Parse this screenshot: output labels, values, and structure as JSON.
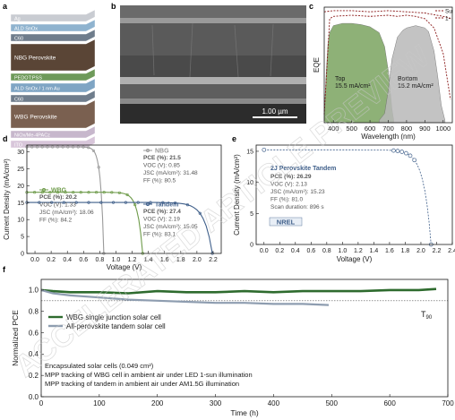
{
  "panel_labels": [
    "a",
    "b",
    "c",
    "d",
    "e",
    "f"
  ],
  "panel_a": {
    "layers": [
      {
        "label": "Ag",
        "color": "#c9ccd2"
      },
      {
        "label": "ALD SnOx",
        "color": "#8fb3cf"
      },
      {
        "label": "C60",
        "color": "#6f7d8c"
      },
      {
        "label": "NBG Perovskite",
        "color": "#5a4536"
      },
      {
        "label": "PEDOT:PSS",
        "color": "#6e9a5a"
      },
      {
        "label": "ALD SnOx / 1 nm Au",
        "color": "#7fa5c4"
      },
      {
        "label": "C60",
        "color": "#6f7d8c"
      },
      {
        "label": "WBG Perovskite",
        "color": "#7a6050"
      },
      {
        "label": "NiOx/Me-4PACz",
        "color": "#c7b7cc"
      },
      {
        "label": "ITO",
        "color": "#d8c6da"
      }
    ]
  },
  "panel_b": {
    "scale_bar": "1.00 µm"
  },
  "chart_data": [
    {
      "panel": "c",
      "type": "area",
      "xlabel": "Wavelength (nm)",
      "ylabel": "EQE",
      "xlim": [
        350,
        1050
      ],
      "xticks": [
        400,
        500,
        600,
        700,
        800,
        900,
        1000
      ],
      "legend": [
        "Su",
        "1-"
      ],
      "annotations": [
        {
          "text": "Top",
          "sub": "15.5 mA/cm²"
        },
        {
          "text": "Bottom",
          "sub": "15.2 mA/cm²"
        }
      ],
      "series": [
        {
          "name": "Top",
          "color": "#7aa35f",
          "x": [
            350,
            360,
            370,
            380,
            400,
            450,
            500,
            550,
            600,
            650,
            680,
            700,
            720,
            730
          ],
          "y": [
            0.05,
            0.4,
            0.68,
            0.78,
            0.84,
            0.86,
            0.86,
            0.85,
            0.83,
            0.78,
            0.66,
            0.45,
            0.12,
            0.02
          ]
        },
        {
          "name": "Bottom",
          "color": "#b8b8b8",
          "x": [
            650,
            680,
            700,
            720,
            750,
            780,
            800,
            850,
            900,
            920,
            950,
            970,
            990,
            1010
          ],
          "y": [
            0.02,
            0.08,
            0.28,
            0.55,
            0.74,
            0.8,
            0.82,
            0.84,
            0.82,
            0.79,
            0.62,
            0.4,
            0.15,
            0.02
          ]
        },
        {
          "name": "Sum",
          "color": "#8b1a1a",
          "dash": true,
          "x": [
            350,
            380,
            400,
            500,
            600,
            700,
            750,
            800,
            850,
            900,
            950,
            1000,
            1040
          ],
          "y": [
            0.07,
            0.9,
            0.92,
            0.93,
            0.92,
            0.93,
            0.92,
            0.93,
            0.92,
            0.9,
            0.82,
            0.6,
            0.2
          ]
        },
        {
          "name": "1-R",
          "color": "#8b1a1a",
          "dash": true,
          "x": [
            350,
            400,
            500,
            600,
            700,
            800,
            900,
            1000,
            1050
          ],
          "y": [
            0.96,
            0.97,
            0.97,
            0.96,
            0.97,
            0.96,
            0.95,
            0.92,
            0.9
          ]
        }
      ]
    },
    {
      "panel": "d",
      "type": "line",
      "xlabel": "Voltage (V)",
      "ylabel": "Current Density (mA/cm²)",
      "xlim": [
        -0.1,
        2.3
      ],
      "ylim": [
        0,
        32
      ],
      "xticks": [
        0.0,
        0.2,
        0.4,
        0.6,
        0.8,
        1.0,
        1.2,
        1.4,
        1.6,
        1.8,
        2.0,
        2.2
      ],
      "yticks": [
        0,
        5,
        10,
        15,
        20,
        25,
        30
      ],
      "series": [
        {
          "name": "NBG",
          "color": "#9a9a9a",
          "jsc": 31.48,
          "voc": 0.85,
          "pce": "21.5",
          "voc_s": "0.85",
          "jsc_s": "31.48",
          "ff": "80.5"
        },
        {
          "name": "WBG",
          "color": "#6e9b4a",
          "jsc": 18.06,
          "voc": 1.33,
          "pce": "20.2",
          "voc_s": "1.33",
          "jsc_s": "18.06",
          "ff": "84.2"
        },
        {
          "name": "Tandem",
          "color": "#3f5f8a",
          "jsc": 15.05,
          "voc": 2.19,
          "pce": "27.4",
          "voc_s": "2.19",
          "jsc_s": "15.05",
          "ff": "83.1"
        }
      ]
    },
    {
      "panel": "e",
      "type": "line",
      "xlabel": "Voltage (V)",
      "ylabel": "Current Density (mA/cm²)",
      "xlim": [
        -0.1,
        2.4
      ],
      "ylim": [
        0,
        16
      ],
      "xticks": [
        0.0,
        0.2,
        0.4,
        0.6,
        0.8,
        1.0,
        1.2,
        1.4,
        1.6,
        1.8,
        2.0,
        2.2,
        2.4
      ],
      "yticks": [
        0,
        5,
        10,
        15
      ],
      "series": [
        {
          "name": "2J Perovskite Tandem",
          "color": "#3f5f8a",
          "jsc": 15.23,
          "voc": 2.13
        }
      ],
      "info": {
        "title": "2J Perovskite Tandem",
        "pce": "26.29",
        "voc": "2.13",
        "jsc": "15.23",
        "ff": "81.0",
        "scan": "896 s"
      },
      "logo": "NREL"
    },
    {
      "panel": "f",
      "type": "line",
      "xlabel": "Time (h)",
      "ylabel": "Normalized PCE",
      "xlim": [
        0,
        700
      ],
      "ylim": [
        0.0,
        1.1
      ],
      "xticks": [
        0,
        100,
        200,
        300,
        400,
        500,
        600,
        700
      ],
      "yticks": [
        0.0,
        0.2,
        0.4,
        0.6,
        0.8,
        1.0
      ],
      "t90_label": "T",
      "t90_sub": "90",
      "t90_value": 0.9,
      "series": [
        {
          "name": "WBG single junction solar cell",
          "color": "#2e6b2e",
          "x": [
            0,
            20,
            50,
            100,
            150,
            200,
            250,
            300,
            350,
            400,
            450,
            500,
            550,
            600,
            650,
            680
          ],
          "y": [
            1.0,
            0.99,
            0.98,
            0.98,
            0.97,
            0.99,
            0.98,
            0.98,
            0.99,
            0.98,
            0.99,
            0.99,
            0.99,
            1.0,
            1.0,
            1.01
          ]
        },
        {
          "name": "All-perovskite tandem solar cell",
          "color": "#8e9db0",
          "x": [
            0,
            20,
            50,
            100,
            150,
            200,
            250,
            300,
            350,
            400,
            450,
            495
          ],
          "y": [
            1.0,
            0.97,
            0.95,
            0.93,
            0.91,
            0.9,
            0.89,
            0.88,
            0.88,
            0.87,
            0.87,
            0.86
          ]
        }
      ],
      "notes": [
        "Encapsulated solar cells (0.049 cm²)",
        "MPP tracking of WBG cell in ambient air under LED 1-sun illumination",
        "MPP tracking of tandem in ambient air under AM1.5G illumination"
      ]
    }
  ],
  "watermark": "ACCELERATED ARTICLE PREVIEW"
}
